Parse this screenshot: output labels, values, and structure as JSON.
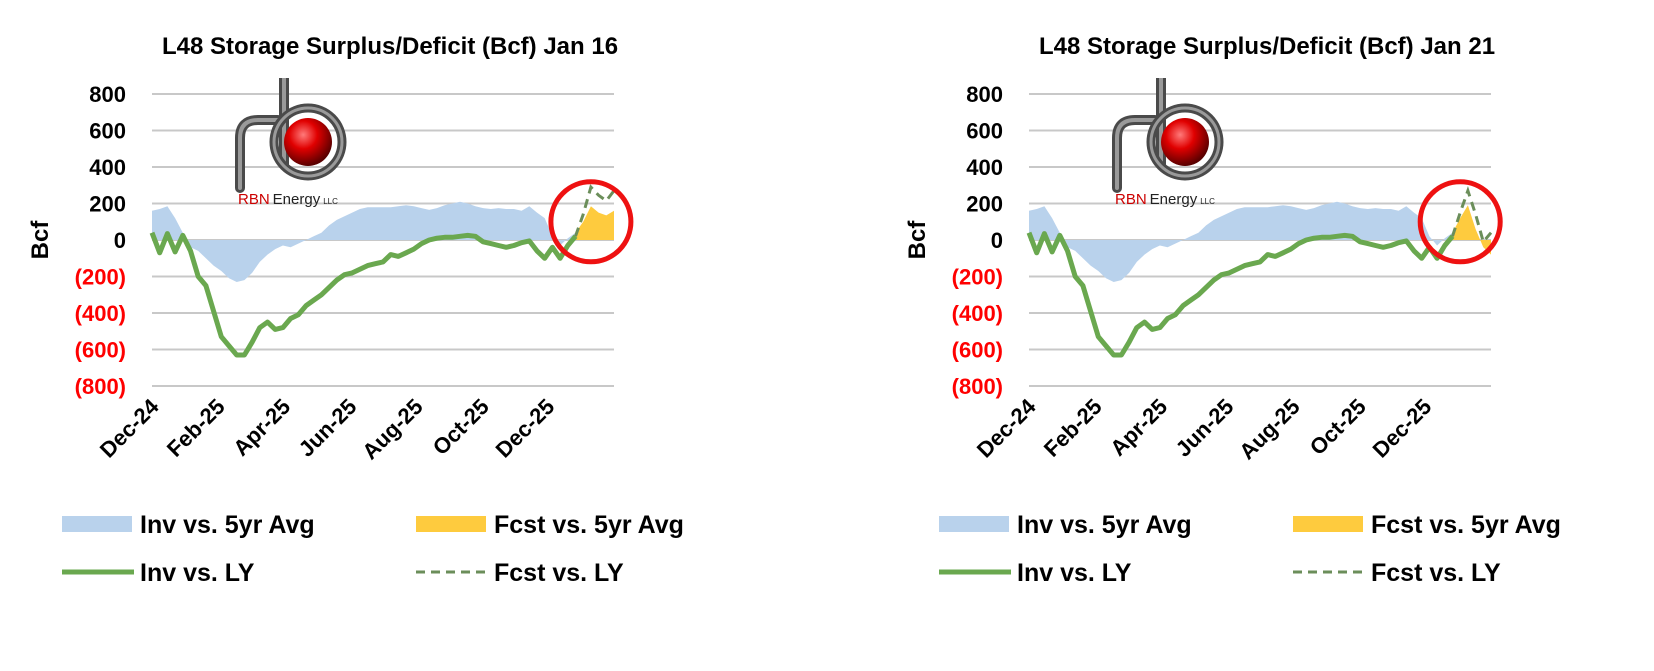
{
  "chart_data": [
    {
      "type": "area",
      "title": "L48 Storage Surplus/Deficit (Bcf) Jan 16",
      "ylabel": "Bcf",
      "xlabel": "",
      "ylim": [
        -800,
        800
      ],
      "y_ticks": [
        800,
        600,
        400,
        200,
        0,
        -200,
        -400,
        -600,
        -800
      ],
      "y_tick_labels": [
        "800",
        "600",
        "400",
        "200",
        "0",
        "(200)",
        "(400)",
        "(600)",
        "(800)"
      ],
      "negative_tick_color": "#ff0000",
      "x_range": [
        0,
        60
      ],
      "x_ticks": [
        0,
        8.6,
        17.1,
        25.7,
        34.3,
        42.9,
        51.4
      ],
      "x_tick_labels": [
        "Dec-24",
        "Feb-25",
        "Apr-25",
        "Jun-25",
        "Aug-25",
        "Oct-25",
        "Dec-25"
      ],
      "grid": true,
      "annotation": "red circle highlighting the forecast period",
      "highlight_center": [
        57,
        100
      ],
      "series": [
        {
          "name": "Inv vs. 5yr Avg",
          "style": "area",
          "color": "#b9d2ec",
          "x": [
            0,
            1,
            2,
            3,
            4,
            5,
            6,
            7,
            8,
            9,
            10,
            11,
            12,
            13,
            14,
            15,
            16,
            17,
            18,
            19,
            20,
            21,
            22,
            23,
            24,
            25,
            26,
            27,
            28,
            29,
            30,
            31,
            32,
            33,
            34,
            35,
            36,
            37,
            38,
            39,
            40,
            41,
            42,
            43,
            44,
            45,
            46,
            47,
            48,
            49,
            50,
            51,
            52,
            53,
            54,
            55
          ],
          "values": [
            160,
            170,
            185,
            120,
            40,
            -40,
            -60,
            -100,
            -140,
            -170,
            -210,
            -230,
            -220,
            -180,
            -120,
            -80,
            -50,
            -30,
            -40,
            -20,
            0,
            20,
            40,
            80,
            110,
            130,
            150,
            170,
            180,
            180,
            180,
            180,
            185,
            190,
            185,
            175,
            165,
            175,
            190,
            200,
            210,
            200,
            185,
            175,
            170,
            175,
            170,
            170,
            160,
            185,
            150,
            120,
            20,
            -30,
            10,
            40
          ]
        },
        {
          "name": "Inv vs. LY",
          "style": "line",
          "color": "#6aa84f",
          "x": [
            0,
            1,
            2,
            3,
            4,
            5,
            6,
            7,
            8,
            9,
            10,
            11,
            12,
            13,
            14,
            15,
            16,
            17,
            18,
            19,
            20,
            21,
            22,
            23,
            24,
            25,
            26,
            27,
            28,
            29,
            30,
            31,
            32,
            33,
            34,
            35,
            36,
            37,
            38,
            39,
            40,
            41,
            42,
            43,
            44,
            45,
            46,
            47,
            48,
            49,
            50,
            51,
            52,
            53,
            54,
            55
          ],
          "values": [
            40,
            -70,
            35,
            -65,
            25,
            -60,
            -200,
            -250,
            -390,
            -530,
            -580,
            -630,
            -630,
            -560,
            -480,
            -450,
            -490,
            -480,
            -430,
            -410,
            -360,
            -330,
            -300,
            -260,
            -220,
            -190,
            -180,
            -160,
            -140,
            -130,
            -120,
            -80,
            -90,
            -70,
            -50,
            -20,
            0,
            10,
            15,
            15,
            20,
            25,
            20,
            -10,
            -20,
            -30,
            -40,
            -30,
            -15,
            -5,
            -60,
            -100,
            -40,
            -100,
            -30,
            20
          ]
        },
        {
          "name": "Fcst vs. 5yr Avg",
          "style": "area",
          "color": "#fecb3e",
          "x": [
            55,
            56,
            57,
            58,
            59,
            60
          ],
          "values": [
            40,
            100,
            185,
            150,
            135,
            160
          ]
        },
        {
          "name": "Fcst vs. LY",
          "style": "dashed-line",
          "color": "#6b8e5a",
          "x": [
            55,
            56,
            57,
            58,
            59,
            60
          ],
          "values": [
            20,
            140,
            290,
            245,
            215,
            270
          ]
        }
      ]
    },
    {
      "type": "area",
      "title": "L48 Storage Surplus/Deficit (Bcf) Jan 21",
      "ylabel": "Bcf",
      "xlabel": "",
      "ylim": [
        -800,
        800
      ],
      "y_ticks": [
        800,
        600,
        400,
        200,
        0,
        -200,
        -400,
        -600,
        -800
      ],
      "y_tick_labels": [
        "800",
        "600",
        "400",
        "200",
        "0",
        "(200)",
        "(400)",
        "(600)",
        "(800)"
      ],
      "negative_tick_color": "#ff0000",
      "x_range": [
        0,
        60
      ],
      "x_ticks": [
        0,
        8.6,
        17.1,
        25.7,
        34.3,
        42.9,
        51.4
      ],
      "x_tick_labels": [
        "Dec-24",
        "Feb-25",
        "Apr-25",
        "Jun-25",
        "Aug-25",
        "Oct-25",
        "Dec-25"
      ],
      "grid": true,
      "annotation": "red circle highlighting the forecast period",
      "highlight_center": [
        56,
        100
      ],
      "series": [
        {
          "name": "Inv vs. 5yr Avg",
          "style": "area",
          "color": "#b9d2ec",
          "x": [
            0,
            1,
            2,
            3,
            4,
            5,
            6,
            7,
            8,
            9,
            10,
            11,
            12,
            13,
            14,
            15,
            16,
            17,
            18,
            19,
            20,
            21,
            22,
            23,
            24,
            25,
            26,
            27,
            28,
            29,
            30,
            31,
            32,
            33,
            34,
            35,
            36,
            37,
            38,
            39,
            40,
            41,
            42,
            43,
            44,
            45,
            46,
            47,
            48,
            49,
            50,
            51,
            52,
            53,
            54,
            55
          ],
          "values": [
            160,
            170,
            185,
            120,
            40,
            -40,
            -60,
            -100,
            -140,
            -170,
            -210,
            -230,
            -220,
            -180,
            -120,
            -80,
            -50,
            -30,
            -40,
            -20,
            0,
            20,
            40,
            80,
            110,
            130,
            150,
            170,
            180,
            180,
            180,
            180,
            185,
            190,
            185,
            175,
            165,
            175,
            190,
            200,
            210,
            200,
            185,
            175,
            170,
            175,
            170,
            170,
            160,
            185,
            150,
            120,
            20,
            -30,
            10,
            40
          ]
        },
        {
          "name": "Inv vs. LY",
          "style": "line",
          "color": "#6aa84f",
          "x": [
            0,
            1,
            2,
            3,
            4,
            5,
            6,
            7,
            8,
            9,
            10,
            11,
            12,
            13,
            14,
            15,
            16,
            17,
            18,
            19,
            20,
            21,
            22,
            23,
            24,
            25,
            26,
            27,
            28,
            29,
            30,
            31,
            32,
            33,
            34,
            35,
            36,
            37,
            38,
            39,
            40,
            41,
            42,
            43,
            44,
            45,
            46,
            47,
            48,
            49,
            50,
            51,
            52,
            53,
            54,
            55
          ],
          "values": [
            40,
            -70,
            35,
            -65,
            25,
            -60,
            -200,
            -250,
            -390,
            -530,
            -580,
            -630,
            -630,
            -560,
            -480,
            -450,
            -490,
            -480,
            -430,
            -410,
            -360,
            -330,
            -300,
            -260,
            -220,
            -190,
            -180,
            -160,
            -140,
            -130,
            -120,
            -80,
            -90,
            -70,
            -50,
            -20,
            0,
            10,
            15,
            15,
            20,
            25,
            20,
            -10,
            -20,
            -30,
            -40,
            -30,
            -15,
            -5,
            -60,
            -100,
            -40,
            -100,
            -30,
            20
          ]
        },
        {
          "name": "Fcst vs. 5yr Avg",
          "style": "area",
          "color": "#fecb3e",
          "x": [
            55,
            56,
            57,
            58,
            59,
            60
          ],
          "values": [
            40,
            120,
            190,
            60,
            -40,
            -80
          ]
        },
        {
          "name": "Fcst vs. LY",
          "style": "dashed-line",
          "color": "#6b8e5a",
          "x": [
            55,
            56,
            57,
            58,
            59,
            60
          ],
          "values": [
            20,
            150,
            270,
            140,
            -10,
            40
          ]
        }
      ]
    }
  ],
  "logo": {
    "brand": "RBN",
    "name": "Energy",
    "suffix": "LLC",
    "brand_color": "#cc0000"
  }
}
